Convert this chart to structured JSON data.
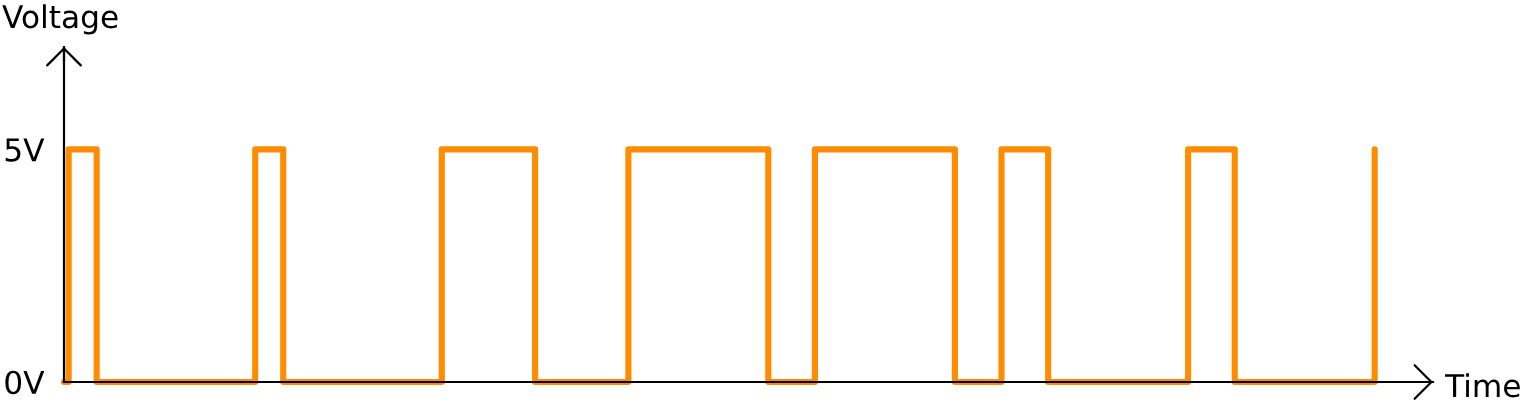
{
  "chart_data": {
    "type": "step",
    "xlabel": "Time",
    "ylabel": "Voltage",
    "categories": [
      null,
      null,
      null,
      null,
      null,
      null,
      null,
      null,
      null,
      null,
      null,
      null,
      null,
      null,
      null,
      null,
      null,
      null,
      null,
      null,
      null,
      null,
      null,
      null,
      null,
      null,
      null,
      null,
      null,
      null,
      null,
      null,
      null,
      null,
      null,
      null,
      null,
      null,
      null,
      null,
      null,
      null,
      null,
      null,
      null,
      null,
      null,
      null,
      null,
      null,
      null,
      null,
      null,
      null,
      null,
      null,
      null,
      null,
      null,
      null,
      null,
      null,
      null,
      null,
      null,
      null,
      null,
      null,
      null,
      null,
      null,
      null,
      null,
      null,
      null,
      null,
      null,
      null,
      null,
      null,
      null,
      null,
      null,
      null,
      null,
      null,
      null,
      null,
      null,
      null,
      null,
      null,
      null,
      null,
      null,
      null,
      null,
      null,
      null,
      null,
      null,
      null,
      null,
      null,
      null,
      null,
      null,
      null,
      null,
      null,
      null,
      null,
      null,
      null,
      null,
      null,
      null,
      null,
      null,
      null,
      null,
      null,
      null,
      null,
      null,
      null,
      null,
      null,
      null,
      null,
      null,
      null,
      null,
      null,
      null,
      null,
      null,
      null,
      null,
      null,
      null,
      null,
      null,
      null,
      null,
      null,
      null,
      null,
      null,
      null,
      null,
      null,
      null,
      null,
      null,
      null,
      null,
      null,
      null,
      null,
      null,
      null,
      null,
      null,
      null,
      null,
      null,
      null,
      null,
      null,
      null,
      null,
      null,
      null,
      null,
      null,
      null,
      null,
      null,
      null,
      null,
      null,
      null,
      null,
      null,
      null,
      null,
      null,
      null,
      null,
      null,
      null,
      null,
      null,
      null,
      null,
      null,
      null,
      null,
      null,
      null,
      null,
      null,
      null,
      null,
      null,
      null,
      null,
      null,
      null,
      null,
      null,
      null,
      null,
      null,
      null,
      null,
      null,
      null,
      null,
      null,
      null,
      null,
      null,
      null,
      null,
      null,
      null,
      null,
      null,
      null,
      null,
      null,
      null,
      null,
      null,
      null,
      null,
      null,
      null,
      null,
      null,
      null,
      null,
      null,
      null,
      null,
      null,
      null,
      null,
      null,
      null,
      null,
      null,
      null,
      null,
      null,
      null,
      null,
      null,
      null,
      null,
      null,
      null,
      null,
      null,
      null,
      null,
      null,
      null,
      null,
      null,
      null,
      null,
      null,
      null,
      null,
      null,
      null,
      null,
      null,
      null
    ],
    "series": [
      {
        "color": "#ff8c00",
        "values": [
          0,
          5,
          5,
          5,
          5,
          5,
          5,
          0,
          0,
          0,
          0,
          0,
          0,
          0,
          0,
          0,
          0,
          0,
          0,
          0,
          0,
          0,
          0,
          0,
          0,
          0,
          0,
          0,
          0,
          0,
          0,
          0,
          0,
          0,
          0,
          0,
          0,
          0,
          0,
          0,
          0,
          5,
          5,
          5,
          5,
          5,
          5,
          0,
          0,
          0,
          0,
          0,
          0,
          0,
          0,
          0,
          0,
          0,
          0,
          0,
          0,
          0,
          0,
          0,
          0,
          0,
          0,
          0,
          0,
          0,
          0,
          0,
          0,
          0,
          0,
          0,
          0,
          0,
          0,
          0,
          0,
          5,
          5,
          5,
          5,
          5,
          5,
          5,
          5,
          5,
          5,
          5,
          5,
          5,
          5,
          5,
          5,
          5,
          5,
          5,
          5,
          0,
          0,
          0,
          0,
          0,
          0,
          0,
          0,
          0,
          0,
          0,
          0,
          0,
          0,
          0,
          0,
          0,
          0,
          0,
          0,
          5,
          5,
          5,
          5,
          5,
          5,
          5,
          5,
          5,
          5,
          5,
          5,
          5,
          5,
          5,
          5,
          5,
          5,
          5,
          5,
          5,
          5,
          5,
          5,
          5,
          5,
          5,
          5,
          5,
          5,
          0,
          0,
          0,
          0,
          0,
          0,
          0,
          0,
          0,
          0,
          5,
          5,
          5,
          5,
          5,
          5,
          5,
          5,
          5,
          5,
          5,
          5,
          5,
          5,
          5,
          5,
          5,
          5,
          5,
          5,
          5,
          5,
          5,
          5,
          5,
          5,
          5,
          5,
          5,
          5,
          0,
          0,
          0,
          0,
          0,
          0,
          0,
          0,
          0,
          0,
          5,
          5,
          5,
          5,
          5,
          5,
          5,
          5,
          5,
          5,
          0,
          0,
          0,
          0,
          0,
          0,
          0,
          0,
          0,
          0,
          0,
          0,
          0,
          0,
          0,
          0,
          0,
          0,
          0,
          0,
          0,
          0,
          0,
          0,
          0,
          0,
          0,
          0,
          0,
          0,
          5,
          5,
          5,
          5,
          5,
          5,
          5,
          5,
          5,
          5,
          0,
          0,
          0,
          0,
          0,
          0,
          0,
          0,
          0,
          0,
          0,
          0,
          0,
          0,
          0,
          0,
          0,
          0,
          0,
          0,
          0,
          0,
          0,
          0,
          0,
          0,
          0,
          0,
          0,
          0,
          5
        ]
      }
    ],
    "ylim": [
      0,
      7.2
    ],
    "yticks": [
      {
        "value": 0,
        "label": "0V"
      },
      {
        "value": 5,
        "label": "5V"
      }
    ],
    "tick_labels": "y"
  }
}
